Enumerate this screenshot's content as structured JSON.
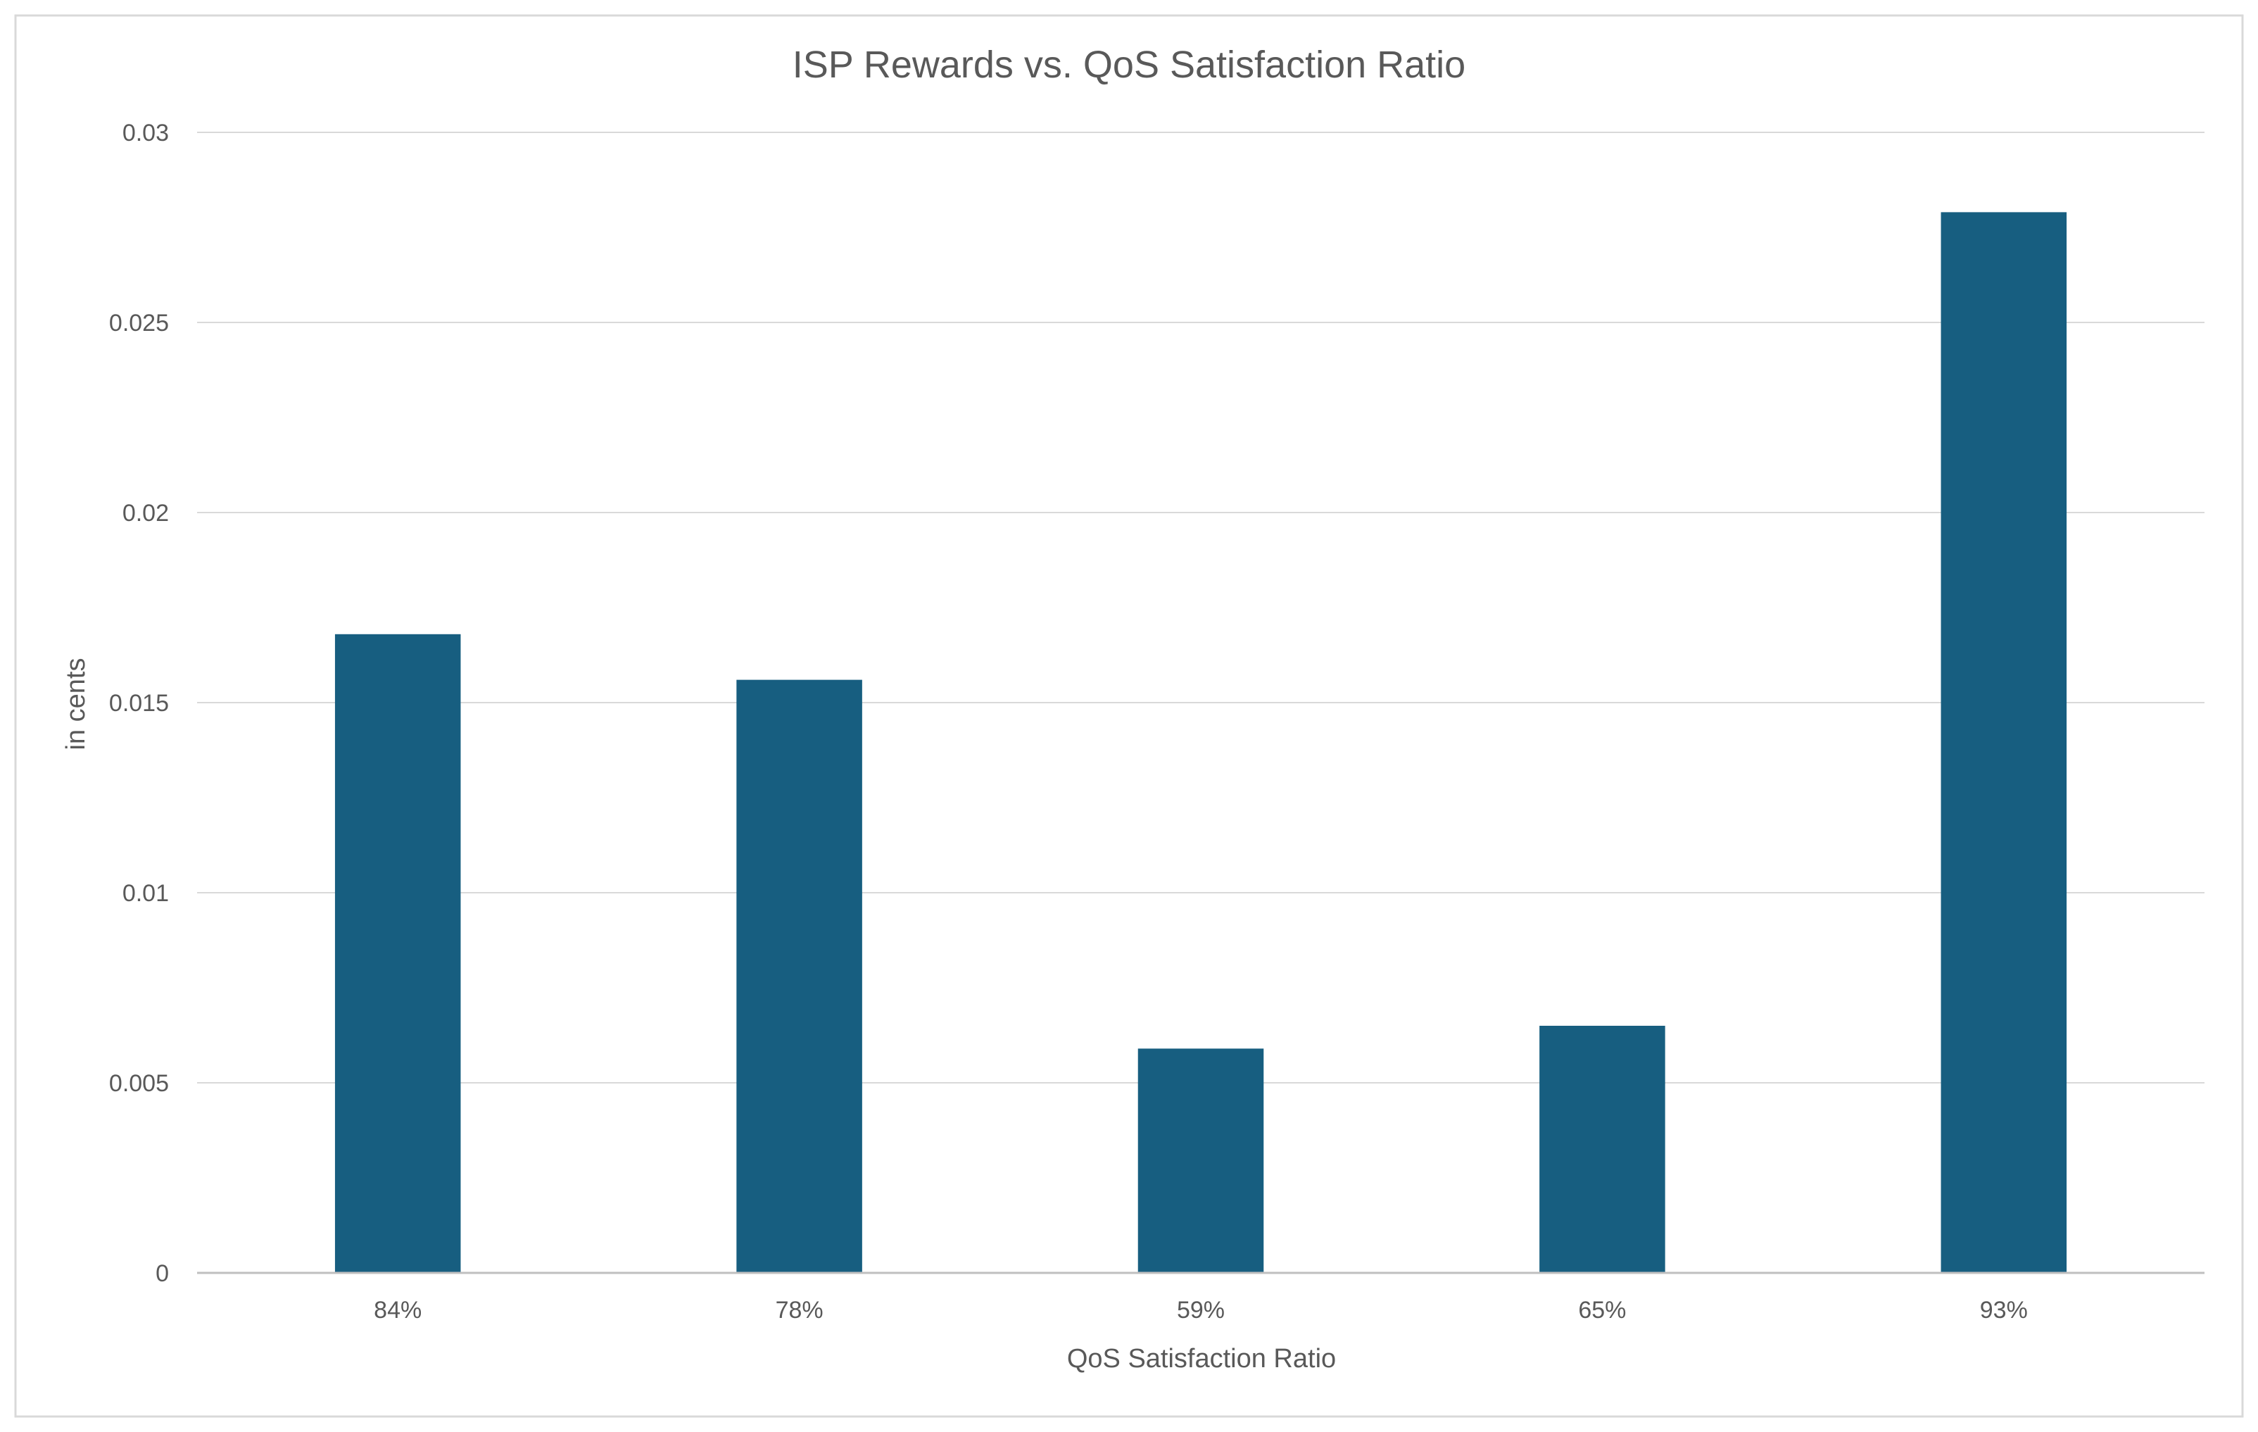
{
  "chart_data": {
    "type": "bar",
    "title": "ISP Rewards vs. QoS Satisfaction Ratio",
    "xlabel": "QoS Satisfaction Ratio",
    "ylabel": "in cents",
    "categories": [
      "84%",
      "78%",
      "59%",
      "65%",
      "93%"
    ],
    "series": [
      {
        "name": "ISP Rewards",
        "values": [
          0.0168,
          0.0156,
          0.0059,
          0.0065,
          0.0279
        ]
      }
    ],
    "ylim": [
      0,
      0.03
    ],
    "yticks": [
      0,
      0.005,
      0.01,
      0.015,
      0.02,
      0.025,
      0.03
    ],
    "ytick_labels": [
      "0",
      "0.005",
      "0.01",
      "0.015",
      "0.02",
      "0.025",
      "0.03"
    ],
    "grid": true,
    "legend": "none",
    "colors": {
      "bar": "#175e80",
      "gridline": "#d9d9d9",
      "axis": "#bfbfbf",
      "text": "#595959",
      "border": "#d9d9d9"
    }
  }
}
